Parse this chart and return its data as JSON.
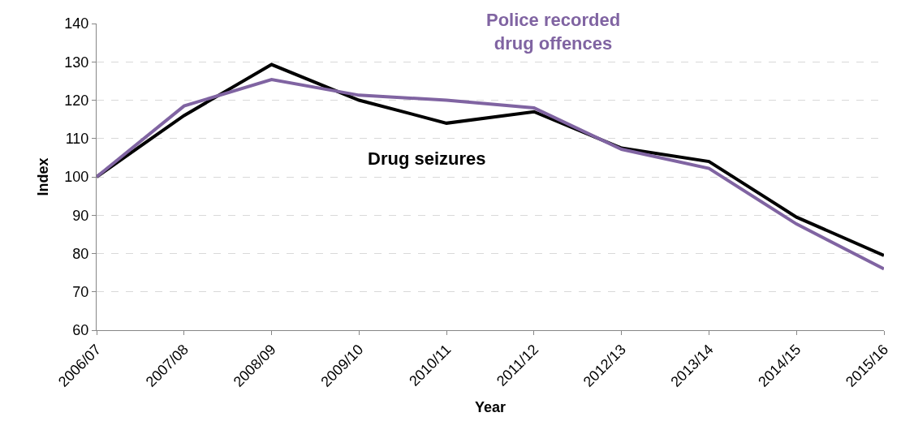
{
  "chart_data": {
    "type": "line",
    "xlabel": "Year",
    "ylabel": "Index",
    "categories": [
      "2006/07",
      "2007/08",
      "2008/09",
      "2009/10",
      "2010/11",
      "2011/12",
      "2012/13",
      "2013/14",
      "2014/15",
      "2015/16"
    ],
    "series": [
      {
        "name": "Drug seizures",
        "color": "#000000",
        "values": [
          100,
          116,
          129.3,
          120,
          114,
          117,
          107.5,
          104,
          89.5,
          79.5
        ]
      },
      {
        "name": "Police recorded drug offences",
        "color": "#8064a2",
        "values": [
          100,
          118.5,
          125.4,
          121.3,
          120,
          118,
          107.2,
          102.2,
          87.7,
          76
        ]
      }
    ],
    "ylim": [
      60,
      140
    ],
    "yticks": [
      60,
      70,
      80,
      90,
      100,
      110,
      120,
      130,
      140
    ],
    "grid": "y",
    "legend": false,
    "marker": "none",
    "line_style": "solid"
  }
}
